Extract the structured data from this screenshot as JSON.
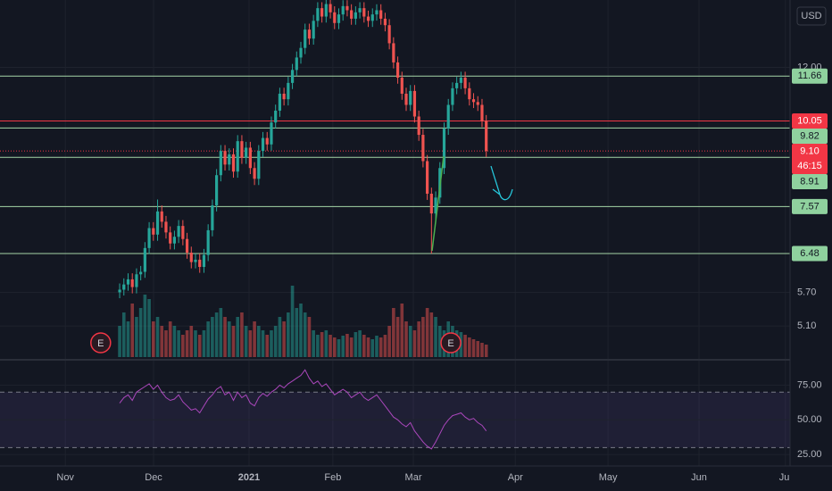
{
  "chart_data": {
    "type": "candlestick",
    "currency": "USD",
    "countdown": "46:15",
    "xlim": [
      -28.4,
      159.1
    ],
    "xticks": [
      {
        "value": -12.9,
        "label": "Nov"
      },
      {
        "value": 8.05,
        "label": "Dec"
      },
      {
        "value": 30.7,
        "label": "2021"
      },
      {
        "value": 50.6,
        "label": "Feb"
      },
      {
        "value": 69.7,
        "label": "Mar"
      },
      {
        "value": 93.9,
        "label": "Apr"
      },
      {
        "value": 115.9,
        "label": "May"
      },
      {
        "value": 137.5,
        "label": "Jun"
      },
      {
        "value": 158,
        "label": "Jul"
      }
    ],
    "ylim": [
      4.6,
      15.0
    ],
    "log_scale": true,
    "yticks": [
      {
        "value": 5.1,
        "label": "5.10"
      },
      {
        "value": 5.7,
        "label": "5.70"
      },
      {
        "value": 12,
        "label": "12.00"
      }
    ],
    "grid": true,
    "up_color": "#26a69a",
    "down_color": "#ef5350",
    "open": [
      5.7,
      5.75,
      5.85,
      5.95,
      5.8,
      6.05,
      6.1,
      6.6,
      7.05,
      6.9,
      7.45,
      7.2,
      6.95,
      6.7,
      6.85,
      7.1,
      6.8,
      6.5,
      6.3,
      6.35,
      6.2,
      6.45,
      7.0,
      7.6,
      8.4,
      9.1,
      8.7,
      9.0,
      8.5,
      9.4,
      8.9,
      9.2,
      8.6,
      8.3,
      9.1,
      9.5,
      9.3,
      10.0,
      10.4,
      11.0,
      10.8,
      11.4,
      11.9,
      12.4,
      12.8,
      13.6,
      13.2,
      14.0,
      14.6,
      14.2,
      14.8,
      14.4,
      13.9,
      14.3,
      14.7,
      14.5,
      14.1,
      14.4,
      14.6,
      14.2,
      14.0,
      14.3,
      14.5,
      14.1,
      13.8,
      13.0,
      12.2,
      11.6,
      11.0,
      10.6,
      11.1,
      10.2,
      9.6,
      8.8,
      7.9,
      7.4,
      7.8,
      8.6,
      9.8,
      10.6,
      11.2,
      11.4,
      11.6,
      11.2,
      10.8,
      10.7,
      10.6,
      10.05
    ],
    "high": [
      5.87,
      5.97,
      6.07,
      6.07,
      6.17,
      6.22,
      6.73,
      7.19,
      7.19,
      7.75,
      7.6,
      7.34,
      7.09,
      6.99,
      7.24,
      7.24,
      6.94,
      6.63,
      6.48,
      6.48,
      6.58,
      7.14,
      7.75,
      8.57,
      9.28,
      9.28,
      9.18,
      9.18,
      9.59,
      9.59,
      9.38,
      9.38,
      8.77,
      9.28,
      9.69,
      9.69,
      10.2,
      10.61,
      11.22,
      11.22,
      11.63,
      12.14,
      12.65,
      13.06,
      13.87,
      13.87,
      14.28,
      14.89,
      14.89,
      15.1,
      15.1,
      14.69,
      14.59,
      14.99,
      14.99,
      14.79,
      14.69,
      14.89,
      14.89,
      14.48,
      14.59,
      14.79,
      14.79,
      14.38,
      14.08,
      13.26,
      12.44,
      11.83,
      11.22,
      11.32,
      11.32,
      10.4,
      9.79,
      8.98,
      8.06,
      7.96,
      8.77,
      10.0,
      10.81,
      11.42,
      11.63,
      11.83,
      11.83,
      11.42,
      11.02,
      10.91,
      10.81,
      10.25
    ],
    "low": [
      5.59,
      5.64,
      5.73,
      5.68,
      5.68,
      5.93,
      5.98,
      6.47,
      6.76,
      6.76,
      7.06,
      6.81,
      6.57,
      6.57,
      6.71,
      6.66,
      6.37,
      6.17,
      6.17,
      6.08,
      6.08,
      6.32,
      6.86,
      7.45,
      8.23,
      8.53,
      8.53,
      8.33,
      8.33,
      8.72,
      8.72,
      8.43,
      8.13,
      8.13,
      8.92,
      9.11,
      9.11,
      9.8,
      10.19,
      10.58,
      10.58,
      11.17,
      11.66,
      12.15,
      12.54,
      12.94,
      12.94,
      13.72,
      13.92,
      13.92,
      14.11,
      13.62,
      13.62,
      14.01,
      14.21,
      13.82,
      13.82,
      14.11,
      13.92,
      13.72,
      13.72,
      14.01,
      13.82,
      13.52,
      12.74,
      11.96,
      11.37,
      10.78,
      10.39,
      10.39,
      10.0,
      9.41,
      8.62,
      7.74,
      6.48,
      7.25,
      7.64,
      8.43,
      9.6,
      10.39,
      10.98,
      11.17,
      10.98,
      10.58,
      10.49,
      10.39,
      9.85,
      8.92
    ],
    "close": [
      5.75,
      5.85,
      5.95,
      5.8,
      6.05,
      6.1,
      6.6,
      7.05,
      6.9,
      7.45,
      7.2,
      6.95,
      6.7,
      6.85,
      7.1,
      6.8,
      6.5,
      6.3,
      6.35,
      6.2,
      6.45,
      7.0,
      7.6,
      8.4,
      9.1,
      8.7,
      9.0,
      8.5,
      9.4,
      8.9,
      9.2,
      8.6,
      8.3,
      9.1,
      9.5,
      9.3,
      10.0,
      10.4,
      11.0,
      10.8,
      11.4,
      11.9,
      12.4,
      12.8,
      13.6,
      13.2,
      14.0,
      14.6,
      14.2,
      14.8,
      14.4,
      13.9,
      14.3,
      14.7,
      14.5,
      14.1,
      14.4,
      14.6,
      14.2,
      14.0,
      14.3,
      14.5,
      14.1,
      13.8,
      13.0,
      12.2,
      11.6,
      11.0,
      10.6,
      11.1,
      10.2,
      9.6,
      8.8,
      7.9,
      7.4,
      7.8,
      8.6,
      9.8,
      10.6,
      11.2,
      11.4,
      11.6,
      11.2,
      10.8,
      10.7,
      10.6,
      10.05,
      9.1
    ],
    "volume": [
      35,
      50,
      40,
      60,
      45,
      55,
      70,
      65,
      40,
      45,
      35,
      30,
      40,
      35,
      30,
      25,
      30,
      35,
      30,
      25,
      30,
      40,
      45,
      50,
      55,
      45,
      40,
      35,
      45,
      50,
      35,
      30,
      40,
      35,
      30,
      25,
      30,
      35,
      45,
      40,
      50,
      80,
      55,
      60,
      50,
      45,
      30,
      25,
      28,
      30,
      25,
      22,
      20,
      24,
      26,
      22,
      28,
      30,
      25,
      22,
      20,
      24,
      22,
      25,
      35,
      55,
      45,
      60,
      40,
      35,
      30,
      40,
      45,
      55,
      50,
      45,
      35,
      30,
      40,
      35,
      30,
      28,
      25,
      22,
      20,
      18,
      16,
      14
    ],
    "levels": [
      {
        "value": 11.66,
        "color": "#a5d6a7"
      },
      {
        "value": 10.05,
        "color": "#f23645"
      },
      {
        "value": 9.82,
        "color": "#a5d6a7"
      },
      {
        "value": 9.1,
        "label": "9.10",
        "color": "#f23645",
        "dotted": true
      },
      {
        "value": 8.91,
        "color": "#a5d6a7"
      },
      {
        "value": 7.57,
        "color": "#a5d6a7"
      },
      {
        "value": 6.48,
        "color": "#a5d6a7"
      }
    ],
    "earnings": [
      {
        "x": -4.5,
        "label": "E"
      },
      {
        "x": 78.6,
        "label": "E"
      }
    ],
    "rsi": {
      "values": [
        62,
        66,
        68,
        64,
        70,
        72,
        74,
        76,
        72,
        75,
        70,
        66,
        64,
        65,
        68,
        63,
        60,
        57,
        58,
        55,
        60,
        65,
        68,
        72,
        74,
        68,
        70,
        64,
        70,
        66,
        68,
        62,
        60,
        66,
        69,
        67,
        70,
        72,
        75,
        73,
        76,
        78,
        80,
        82,
        86,
        80,
        76,
        78,
        74,
        76,
        72,
        68,
        70,
        72,
        70,
        66,
        68,
        70,
        66,
        64,
        66,
        68,
        64,
        60,
        56,
        52,
        50,
        47,
        45,
        48,
        42,
        38,
        34,
        31,
        29,
        34,
        40,
        46,
        50,
        53,
        54,
        55,
        52,
        50,
        51,
        48,
        46,
        42
      ],
      "ylim": [
        18,
        92
      ],
      "yticks": [
        {
          "value": 25,
          "label": "25.00"
        },
        {
          "value": 50,
          "label": "50.00"
        },
        {
          "value": 75,
          "label": "75.00"
        }
      ],
      "band": [
        30,
        70
      ],
      "color": "#ab47bc"
    }
  }
}
